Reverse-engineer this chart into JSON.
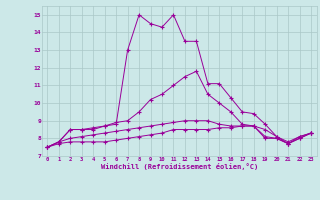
{
  "x": [
    0,
    1,
    2,
    3,
    4,
    5,
    6,
    7,
    8,
    9,
    10,
    11,
    12,
    13,
    14,
    15,
    16,
    17,
    18,
    19,
    20,
    21,
    22,
    23
  ],
  "line1": [
    7.5,
    7.8,
    8.5,
    8.5,
    8.5,
    8.7,
    8.8,
    13.0,
    15.0,
    14.5,
    14.3,
    15.0,
    13.5,
    13.5,
    11.1,
    11.1,
    10.3,
    9.5,
    9.4,
    8.8,
    8.1,
    7.7,
    8.0,
    8.3
  ],
  "line2": [
    7.5,
    7.7,
    7.8,
    7.8,
    7.8,
    7.8,
    7.9,
    8.0,
    8.1,
    8.2,
    8.3,
    8.5,
    8.5,
    8.5,
    8.5,
    8.6,
    8.6,
    8.7,
    8.7,
    8.0,
    8.0,
    7.7,
    8.0,
    8.3
  ],
  "line3": [
    7.5,
    7.8,
    8.0,
    8.1,
    8.2,
    8.3,
    8.4,
    8.5,
    8.6,
    8.7,
    8.8,
    8.9,
    9.0,
    9.0,
    9.0,
    8.8,
    8.7,
    8.7,
    8.7,
    8.1,
    8.0,
    7.7,
    8.1,
    8.3
  ],
  "line4": [
    7.5,
    7.8,
    8.5,
    8.5,
    8.6,
    8.7,
    8.9,
    9.0,
    9.5,
    10.2,
    10.5,
    11.0,
    11.5,
    11.8,
    10.5,
    10.0,
    9.5,
    8.8,
    8.7,
    8.5,
    8.1,
    7.8,
    8.1,
    8.3
  ],
  "line_color": "#990099",
  "bg_color": "#cce8e8",
  "grid_color": "#aac8c8",
  "xlabel": "Windchill (Refroidissement éolien,°C)",
  "ylabel_ticks": [
    7,
    8,
    9,
    10,
    11,
    12,
    13,
    14,
    15
  ],
  "xlim": [
    -0.5,
    23.5
  ],
  "ylim": [
    7,
    15.5
  ]
}
